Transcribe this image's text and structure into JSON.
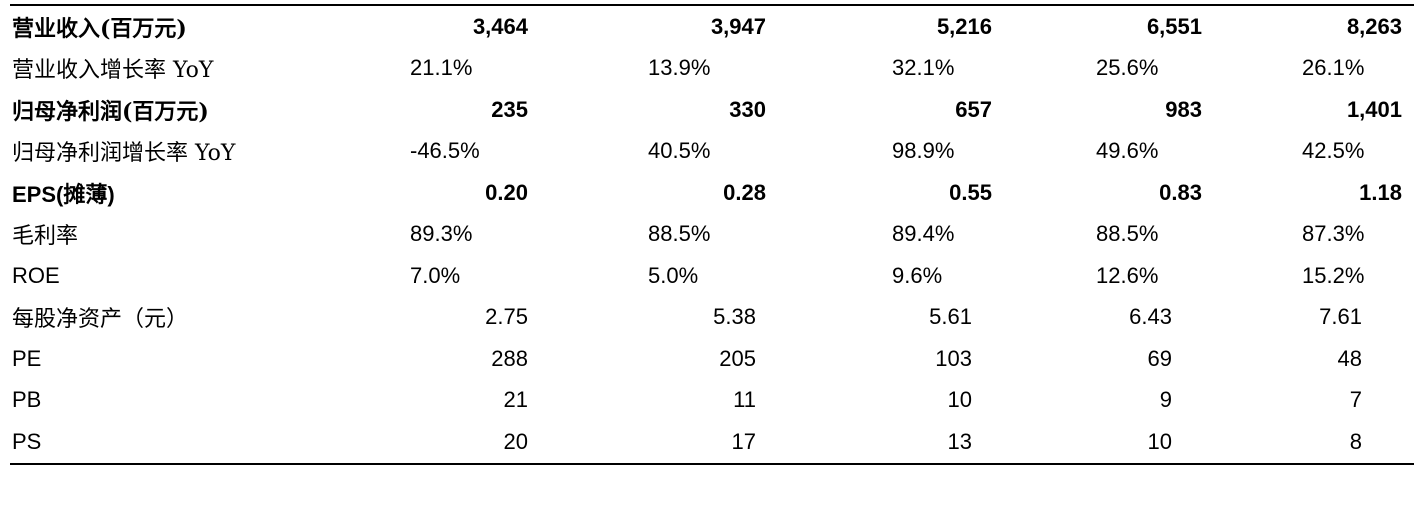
{
  "table": {
    "rows": [
      {
        "label": "营业收入(百万元)",
        "style": "bold",
        "values": [
          "3,464",
          "3,947",
          "5,216",
          "6,551",
          "8,263"
        ]
      },
      {
        "label": "营业收入增长率 YoY",
        "style": "left",
        "values": [
          "21.1%",
          "13.9%",
          "32.1%",
          "25.6%",
          "26.1%"
        ]
      },
      {
        "label": "归母净利润(百万元)",
        "style": "bold",
        "values": [
          "235",
          "330",
          "657",
          "983",
          "1,401"
        ]
      },
      {
        "label": "归母净利润增长率 YoY",
        "style": "left",
        "values": [
          "-46.5%",
          "40.5%",
          "98.9%",
          "49.6%",
          "42.5%"
        ]
      },
      {
        "label": "EPS(摊薄)",
        "style": "bold",
        "values": [
          "0.20",
          "0.28",
          "0.55",
          "0.83",
          "1.18"
        ]
      },
      {
        "label": "毛利率",
        "style": "left",
        "values": [
          "89.3%",
          "88.5%",
          "89.4%",
          "88.5%",
          "87.3%"
        ]
      },
      {
        "label": "ROE",
        "style": "left",
        "values": [
          "7.0%",
          "5.0%",
          "9.6%",
          "12.6%",
          "15.2%"
        ]
      },
      {
        "label": "每股净资产（元）",
        "style": "center",
        "values": [
          "2.75",
          "5.38",
          "5.61",
          "6.43",
          "7.61"
        ]
      },
      {
        "label": "PE",
        "style": "center",
        "values": [
          "288",
          "205",
          "103",
          "69",
          "48"
        ]
      },
      {
        "label": "PB",
        "style": "center",
        "values": [
          "21",
          "11",
          "10",
          "9",
          "7"
        ]
      },
      {
        "label": "PS",
        "style": "center",
        "values": [
          "20",
          "17",
          "13",
          "10",
          "8"
        ]
      }
    ]
  }
}
